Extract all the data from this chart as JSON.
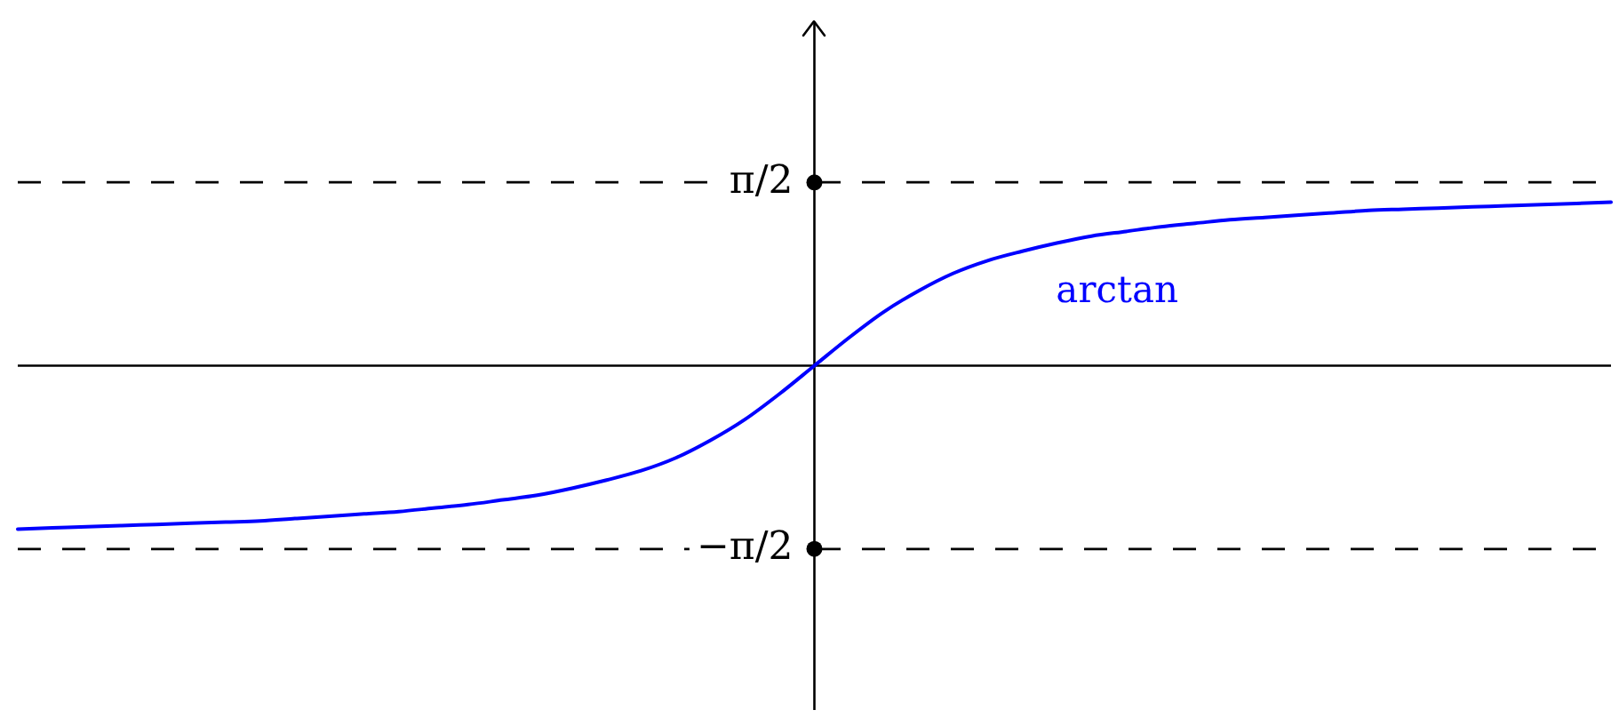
{
  "chart_data": {
    "type": "line",
    "categories": [
      null,
      null,
      null,
      null,
      null,
      null,
      null,
      null,
      null,
      null,
      null,
      null,
      null,
      null,
      null,
      null,
      null,
      null,
      null,
      null,
      null,
      null,
      null,
      null,
      null,
      null,
      null,
      null,
      null,
      null,
      null,
      null,
      null,
      null,
      null,
      null,
      null,
      null,
      null,
      null,
      null,
      null,
      null,
      null,
      null,
      null,
      null
    ],
    "series": [
      {
        "name": "arctan",
        "color": "#0000ff",
        "values": [
          -1.4,
          -1.39,
          -1.38,
          -1.37,
          -1.36,
          -1.35,
          -1.34,
          -1.33,
          -1.31,
          -1.29,
          -1.27,
          -1.25,
          -1.22,
          -1.19,
          -1.15,
          -1.11,
          -1.05,
          -0.98,
          -0.9,
          -0.79,
          -0.64,
          -0.46,
          -0.24,
          0,
          0.24,
          0.46,
          0.64,
          0.79,
          0.9,
          0.98,
          1.05,
          1.11,
          1.15,
          1.19,
          1.22,
          1.25,
          1.27,
          1.29,
          1.31,
          1.33,
          1.34,
          1.35,
          1.36,
          1.37,
          1.38,
          1.39,
          1.4
        ]
      },
      {
        "type": "scatter",
        "color": "#000000",
        "marker": "circle",
        "values": [
          null,
          null,
          null,
          null,
          null,
          null,
          null,
          null,
          null,
          null,
          null,
          null,
          null,
          null,
          null,
          null,
          null,
          null,
          null,
          null,
          null,
          null,
          null,
          1.57,
          null,
          null,
          null,
          null,
          null,
          null,
          null,
          null,
          null,
          null,
          null,
          null,
          null,
          null,
          null,
          null,
          null,
          null,
          null,
          null,
          null,
          null,
          null
        ]
      },
      {
        "type": "scatter",
        "color": "#000000",
        "marker": "circle",
        "values": [
          null,
          null,
          null,
          null,
          null,
          null,
          null,
          null,
          null,
          null,
          null,
          null,
          null,
          null,
          null,
          null,
          null,
          null,
          null,
          null,
          null,
          null,
          null,
          -1.57,
          null,
          null,
          null,
          null,
          null,
          null,
          null,
          null,
          null,
          null,
          null,
          null,
          null,
          null,
          null,
          null,
          null,
          null,
          null,
          null,
          null,
          null,
          null
        ]
      }
    ],
    "ylim": [
      -2.95,
      2.95
    ],
    "yticks": [
      {
        "value": 1.5708,
        "label": "π/2"
      },
      {
        "value": -1.5708,
        "label": "−π/2"
      }
    ],
    "ref_lines": [
      {
        "axis": "y",
        "value": 1.5708,
        "color": "#000000",
        "line_style": "dashed"
      },
      {
        "axis": "y",
        "value": -1.5708,
        "color": "#000000",
        "line_style": "dashed"
      }
    ],
    "legend": false,
    "marker": "none",
    "line_style": "solid",
    "tick_labels": "y"
  }
}
